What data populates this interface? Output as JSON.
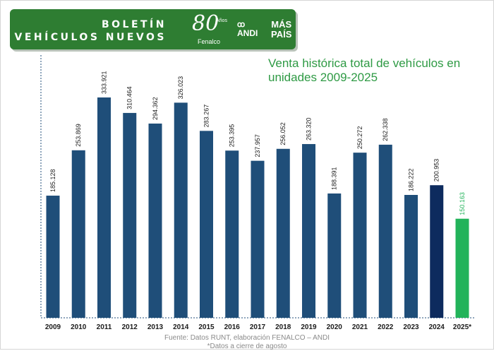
{
  "header": {
    "title_line1": "BOLETÍN",
    "title_line2": "VEHÍCULOS NUEVOS",
    "logo_fenalco_number": "80",
    "logo_fenalco_years": "Años",
    "logo_fenalco_name": "Fenalco",
    "logo_andi_symbol": "ꝏ",
    "logo_andi_name": "ANDI",
    "logo_pais_line1": "MÁS",
    "logo_pais_line2": "PAÍS"
  },
  "colors": {
    "banner": "#2e7d32",
    "bar": "#1f4e79",
    "bar_2024": "#0d2b5e",
    "bar_2025": "#22b35a",
    "title": "#2e9a44"
  },
  "chart_data": {
    "type": "bar",
    "title": "Venta histórica total de vehículos en unidades 2009-2025",
    "categories": [
      "2009",
      "2010",
      "2011",
      "2012",
      "2013",
      "2014",
      "2015",
      "2016",
      "2017",
      "2018",
      "2019",
      "2020",
      "2021",
      "2022",
      "2023",
      "2024",
      "2025*"
    ],
    "values": [
      185128,
      253869,
      333921,
      310464,
      294362,
      326023,
      283267,
      253395,
      237957,
      256052,
      263320,
      188391,
      250272,
      262338,
      186222,
      200953,
      150163
    ],
    "value_labels": [
      "185.128",
      "253.869",
      "333.921",
      "310.464",
      "294.362",
      "326.023",
      "283.267",
      "253.395",
      "237.957",
      "256.052",
      "263.320",
      "188.391",
      "250.272",
      "262.338",
      "186.222",
      "200.953",
      "150.163"
    ],
    "xlabel": "",
    "ylabel": "",
    "ylim": [
      0,
      350000
    ],
    "grid": false,
    "legend": "none"
  },
  "footer": {
    "source": "Fuente: Datos RUNT, elaboración FENALCO – ANDI",
    "note": "*Datos a cierre de agosto"
  }
}
